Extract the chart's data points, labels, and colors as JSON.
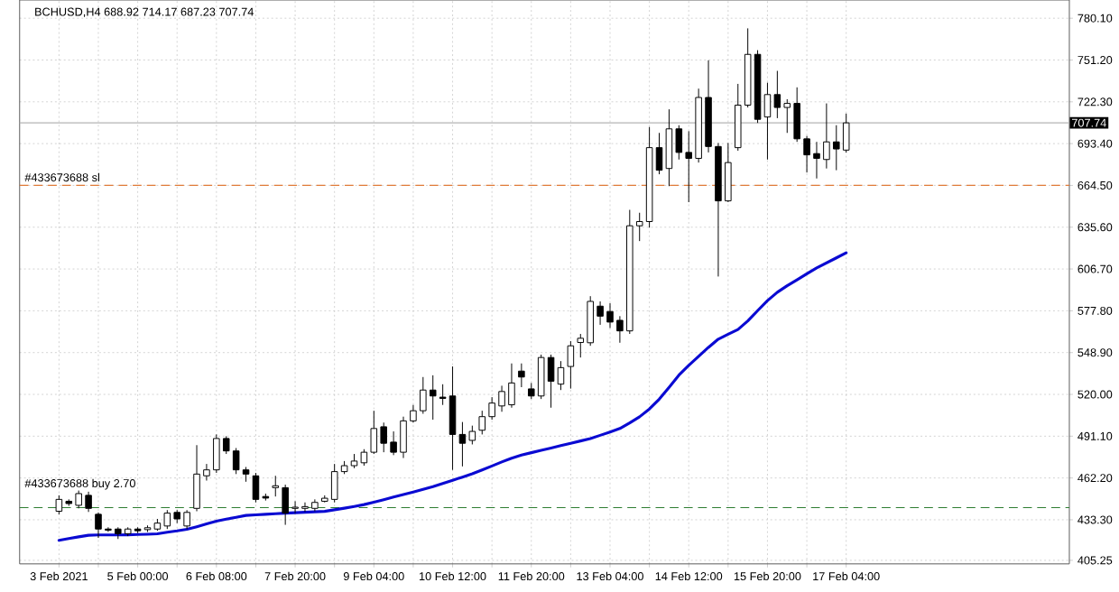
{
  "chart_data": {
    "type": "candlestick",
    "title": "BCHUSD,H4 688.92 714.17 687.23 707.74",
    "categories": [
      "3 Feb 2021",
      null,
      null,
      null,
      null,
      null,
      null,
      null,
      "5 Feb 00:00",
      null,
      null,
      null,
      null,
      null,
      null,
      null,
      "6 Feb 08:00",
      null,
      null,
      null,
      null,
      null,
      null,
      null,
      "7 Feb 20:00",
      null,
      null,
      null,
      null,
      null,
      null,
      null,
      "9 Feb 04:00",
      null,
      null,
      null,
      null,
      null,
      null,
      null,
      "10 Feb 12:00",
      null,
      null,
      null,
      null,
      null,
      null,
      null,
      "11 Feb 20:00",
      null,
      null,
      null,
      null,
      null,
      null,
      null,
      "13 Feb 04:00",
      null,
      null,
      null,
      null,
      null,
      null,
      null,
      "14 Feb 12:00",
      null,
      null,
      null,
      null,
      null,
      null,
      null,
      "15 Feb 20:00",
      null,
      null,
      null,
      null,
      null,
      null,
      null,
      "17 Feb 04:00"
    ],
    "ohlc": [
      [
        439.2,
        450.2,
        437.1,
        447.4
      ],
      [
        446.1,
        447.4,
        442.9,
        444.5
      ],
      [
        443.3,
        453.5,
        441.2,
        451.4
      ],
      [
        450.2,
        452.7,
        438.7,
        441.2
      ],
      [
        437.1,
        438.4,
        420.8,
        426.9
      ],
      [
        426.9,
        428.1,
        424.9,
        426.1
      ],
      [
        426.9,
        428.1,
        420.0,
        423.7
      ],
      [
        423.7,
        428.1,
        422.0,
        426.9
      ],
      [
        426.9,
        428.1,
        424.1,
        425.7
      ],
      [
        426.5,
        429.4,
        424.9,
        427.8
      ],
      [
        426.9,
        433.9,
        425.7,
        431.0
      ],
      [
        429.0,
        440.0,
        426.9,
        437.9
      ],
      [
        438.4,
        440.0,
        431.0,
        433.9
      ],
      [
        429.0,
        440.0,
        426.9,
        438.4
      ],
      [
        441.2,
        484.9,
        439.2,
        464.9
      ],
      [
        463.7,
        471.9,
        460.4,
        467.8
      ],
      [
        467.8,
        492.3,
        465.7,
        489.5
      ],
      [
        489.5,
        491.1,
        478.8,
        480.9
      ],
      [
        480.9,
        482.9,
        464.9,
        467.8
      ],
      [
        467.8,
        469.8,
        459.6,
        464.9
      ],
      [
        463.7,
        465.7,
        445.3,
        447.4
      ],
      [
        449.4,
        451.4,
        446.6,
        448.3
      ],
      [
        455.5,
        463.7,
        449.4,
        456.8
      ],
      [
        455.5,
        457.6,
        429.8,
        437.9
      ],
      [
        441.2,
        446.1,
        437.9,
        442.0
      ],
      [
        441.2,
        445.3,
        438.8,
        442.4
      ],
      [
        441.2,
        447.4,
        439.2,
        445.3
      ],
      [
        446.1,
        450.2,
        445.3,
        448.2
      ],
      [
        447.4,
        471.9,
        445.3,
        466.6
      ],
      [
        466.6,
        473.9,
        464.9,
        470.7
      ],
      [
        470.7,
        478.8,
        469.0,
        473.9
      ],
      [
        472.7,
        482.1,
        470.7,
        480.0
      ],
      [
        480.0,
        508.7,
        478.8,
        496.4
      ],
      [
        497.6,
        500.5,
        480.0,
        486.2
      ],
      [
        487.0,
        494.4,
        478.0,
        480.0
      ],
      [
        480.0,
        504.6,
        476.0,
        501.7
      ],
      [
        501.7,
        512.7,
        500.5,
        508.7
      ],
      [
        508.7,
        532.0,
        506.6,
        523.0
      ],
      [
        523.0,
        533.2,
        502.5,
        518.9
      ],
      [
        518.1,
        527.0,
        512.7,
        517.2
      ],
      [
        518.9,
        539.3,
        467.8,
        492.3
      ],
      [
        492.3,
        500.9,
        470.2,
        486.2
      ],
      [
        488.2,
        498.4,
        485.4,
        494.4
      ],
      [
        495.2,
        508.7,
        492.3,
        504.6
      ],
      [
        504.6,
        518.1,
        502.5,
        514.0
      ],
      [
        512.0,
        526.0,
        508.0,
        522.0
      ],
      [
        512.8,
        541.4,
        510.8,
        527.9
      ],
      [
        536.1,
        541.4,
        525.0,
        532.0
      ],
      [
        523.8,
        527.9,
        516.8,
        518.9
      ],
      [
        518.9,
        547.5,
        516.8,
        545.5
      ],
      [
        545.5,
        547.5,
        510.8,
        529.1
      ],
      [
        527.1,
        543.0,
        523.0,
        538.5
      ],
      [
        539.3,
        556.8,
        524.0,
        553.6
      ],
      [
        555.9,
        561.8,
        545.5,
        558.8
      ],
      [
        555.7,
        587.9,
        553.6,
        584.3
      ],
      [
        581.0,
        584.3,
        568.1,
        574.1
      ],
      [
        577.3,
        583.0,
        565.9,
        570.0
      ],
      [
        571.2,
        574.1,
        555.7,
        563.9
      ],
      [
        563.9,
        647.6,
        561.8,
        636.6
      ],
      [
        636.6,
        645.6,
        626.0,
        639.5
      ],
      [
        639.5,
        704.9,
        635.4,
        690.6
      ],
      [
        690.6,
        700.8,
        672.2,
        675.0
      ],
      [
        676.2,
        717.1,
        664.0,
        703.6
      ],
      [
        703.6,
        706.1,
        682.4,
        687.3
      ],
      [
        687.3,
        702.0,
        652.9,
        683.2
      ],
      [
        683.2,
        731.4,
        680.3,
        725.3
      ],
      [
        725.3,
        751.0,
        687.3,
        691.4
      ],
      [
        691.4,
        693.8,
        601.5,
        653.8
      ],
      [
        653.8,
        693.8,
        653.0,
        680.3
      ],
      [
        690.6,
        734.7,
        688.5,
        720.0
      ],
      [
        720.0,
        773.1,
        718.4,
        755.1
      ],
      [
        755.1,
        758.0,
        707.7,
        710.2
      ],
      [
        711.8,
        735.5,
        682.4,
        727.3
      ],
      [
        727.3,
        743.7,
        711.0,
        718.4
      ],
      [
        718.4,
        724.1,
        700.8,
        721.2
      ],
      [
        721.2,
        732.3,
        694.6,
        696.7
      ],
      [
        696.7,
        698.7,
        673.4,
        685.6
      ],
      [
        686.5,
        694.6,
        669.3,
        683.2
      ],
      [
        682.4,
        721.2,
        676.2,
        694.6
      ],
      [
        694.6,
        706.1,
        675.0,
        689.7
      ],
      [
        688.92,
        714.17,
        687.23,
        707.74
      ]
    ],
    "series": [
      {
        "type": "line",
        "color": "#0a0ad2",
        "values": [
          419.1,
          420.3,
          421.5,
          422.6,
          422.8,
          422.8,
          422.8,
          422.9,
          423.1,
          423.3,
          423.6,
          424.7,
          425.6,
          426.7,
          428.5,
          430.4,
          432.3,
          433.7,
          435.0,
          436.3,
          436.7,
          437.1,
          437.5,
          437.9,
          438.2,
          438.5,
          438.8,
          439.1,
          440.2,
          441.3,
          442.5,
          443.8,
          445.5,
          447.2,
          449.0,
          450.7,
          452.5,
          454.4,
          456.2,
          458.4,
          460.6,
          462.8,
          465.1,
          467.8,
          470.5,
          473.3,
          475.9,
          478.0,
          479.7,
          481.3,
          482.9,
          484.6,
          486.2,
          487.8,
          489.5,
          491.7,
          494.0,
          496.4,
          500.3,
          504.5,
          509.9,
          516.7,
          524.9,
          533.3,
          540.1,
          546.3,
          552.5,
          558.2,
          561.6,
          564.9,
          570.8,
          577.9,
          584.8,
          590.6,
          595.1,
          599.2,
          603.4,
          607.4,
          610.9,
          614.4,
          617.9
        ]
      }
    ],
    "ylim": [
      402.8,
      792.7
    ],
    "yticks": [
      {
        "value": 405.25,
        "label": "405.25"
      },
      {
        "value": 433.3,
        "label": "433.30"
      },
      {
        "value": 462.2,
        "label": "462.20"
      },
      {
        "value": 491.1,
        "label": "491.10"
      },
      {
        "value": 520.0,
        "label": "520.00"
      },
      {
        "value": 548.9,
        "label": "548.90"
      },
      {
        "value": 577.8,
        "label": "577.80"
      },
      {
        "value": 606.7,
        "label": "606.70"
      },
      {
        "value": 635.6,
        "label": "635.60"
      },
      {
        "value": 664.5,
        "label": "664.50"
      },
      {
        "value": 693.4,
        "label": "693.40"
      },
      {
        "value": 722.3,
        "label": "722.30"
      },
      {
        "value": 751.2,
        "label": "751.20"
      },
      {
        "value": 780.1,
        "label": "780.10"
      }
    ],
    "ref_lines": [
      {
        "axis": "y",
        "value": 664.5,
        "label": "#433673688 sl",
        "color": "#e07b39",
        "line_style": "dashed"
      },
      {
        "axis": "y",
        "value": 441.7,
        "label": "#433673688 buy 2.70",
        "color": "#2e7d32",
        "line_style": "dashed"
      },
      {
        "axis": "y",
        "value": 707.74,
        "label": "707.74",
        "color": "#b4b4b4",
        "line_style": "solid"
      }
    ],
    "grid": true
  }
}
